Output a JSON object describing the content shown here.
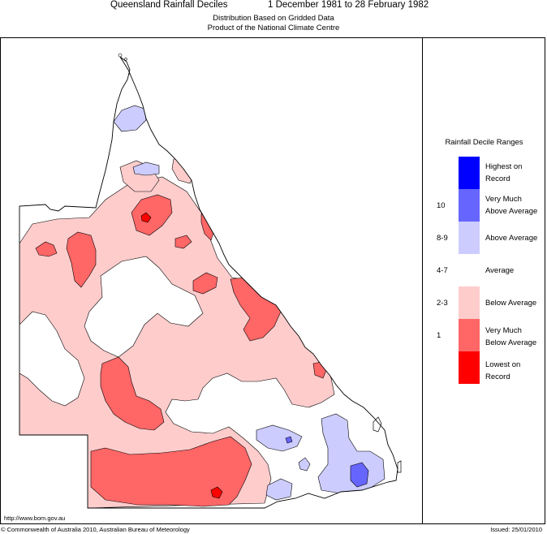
{
  "header": {
    "title": "Queensland Rainfall Deciles",
    "period": "1 December 1981 to 28 February 1982",
    "subtitle1": "Distribution Based on Gridded Data",
    "subtitle2": "Product of the National Climate Centre"
  },
  "legend": {
    "title": "Rainfall Decile Ranges",
    "items": [
      {
        "decile": "",
        "line1": "Highest on",
        "line2": "Record",
        "color": "#0000ff"
      },
      {
        "decile": "10",
        "line1": "Very Much",
        "line2": "Above Average",
        "color": "#6666ff"
      },
      {
        "decile": "8-9",
        "line1": "Above Average",
        "line2": "",
        "color": "#ccccff"
      },
      {
        "decile": "4-7",
        "line1": "Average",
        "line2": "",
        "color": "#ffffff"
      },
      {
        "decile": "2-3",
        "line1": "Below Average",
        "line2": "",
        "color": "#ffcccc"
      },
      {
        "decile": "1",
        "line1": "Very Much",
        "line2": "Below Average",
        "color": "#ff6666"
      },
      {
        "decile": "",
        "line1": "Lowest on",
        "line2": "Record",
        "color": "#ff0000"
      }
    ]
  },
  "footer": {
    "url": "http://www.bom.gov.au",
    "copyright": "© Commonwealth of Australia 2010, Australian Bureau of Meteorology",
    "issued": "Issued: 25/01/2010"
  }
}
